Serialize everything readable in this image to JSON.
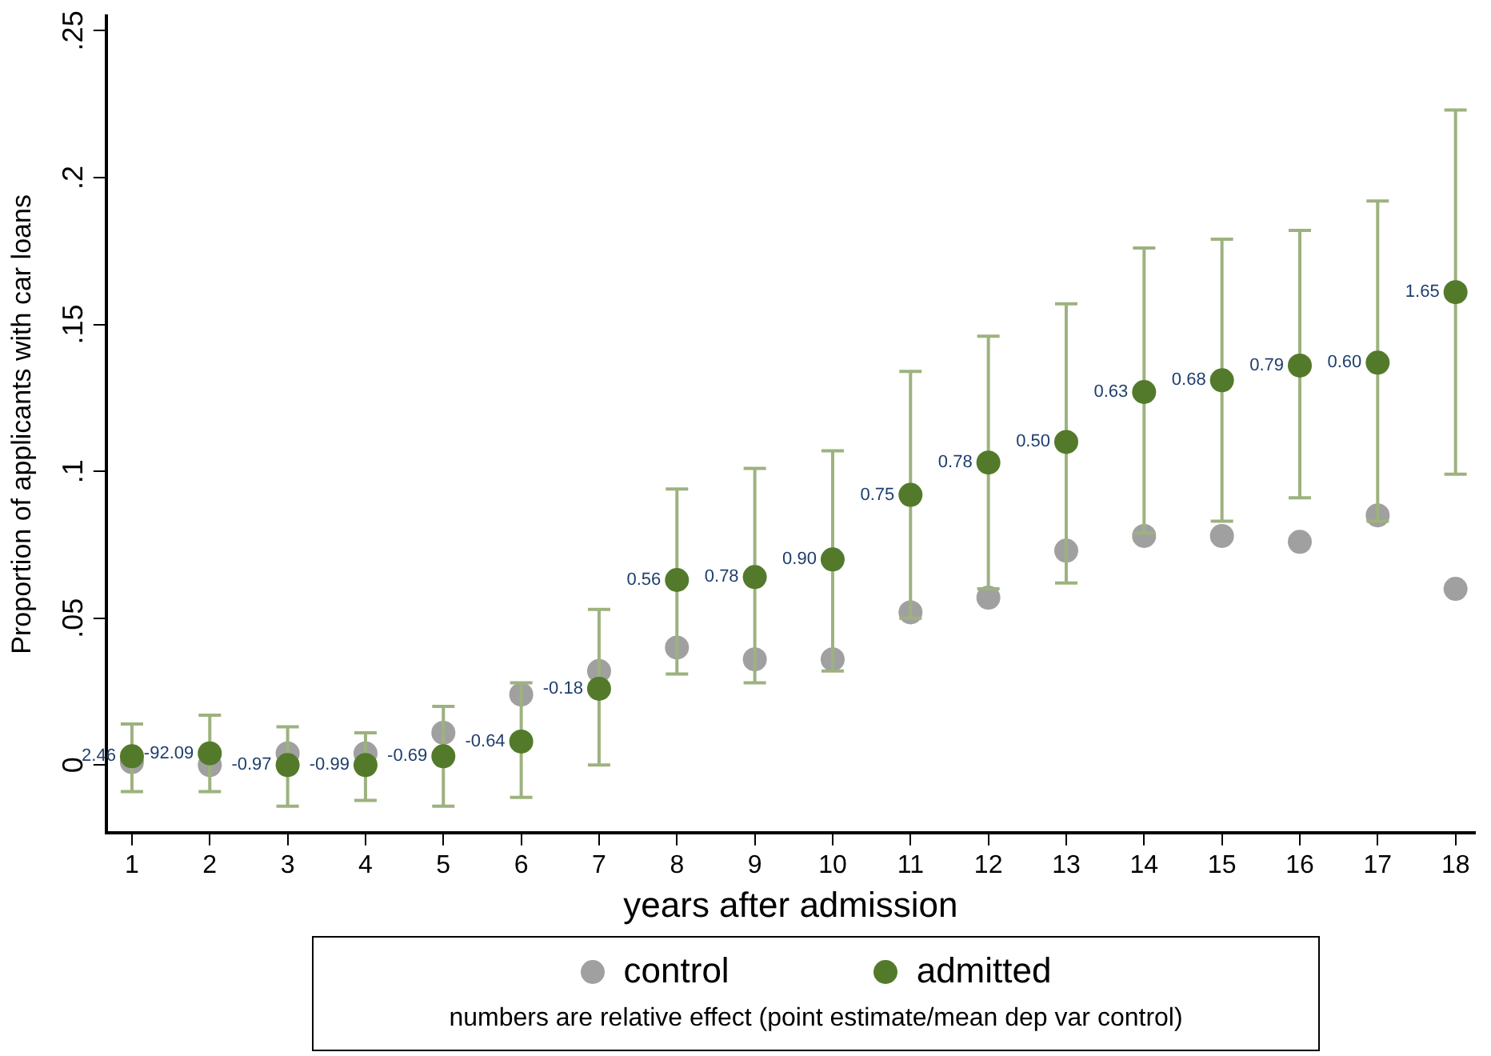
{
  "chart_data": {
    "type": "scatter",
    "xlabel": "years after admission",
    "ylabel": "Proportion of applicants with car loans",
    "x": [
      1,
      2,
      3,
      4,
      5,
      6,
      7,
      8,
      9,
      10,
      11,
      12,
      13,
      14,
      15,
      16,
      17,
      18
    ],
    "series": [
      {
        "name": "control",
        "color": "#a0a0a0",
        "values": [
          0.001,
          0.0,
          0.004,
          0.004,
          0.011,
          0.024,
          0.032,
          0.04,
          0.036,
          0.036,
          0.052,
          0.057,
          0.073,
          0.078,
          0.078,
          0.076,
          0.085,
          0.06
        ]
      },
      {
        "name": "admitted",
        "color": "#537a2a",
        "values": [
          0.003,
          0.004,
          0.0,
          0.0,
          0.003,
          0.008,
          0.026,
          0.063,
          0.064,
          0.07,
          0.092,
          0.103,
          0.11,
          0.127,
          0.131,
          0.136,
          0.137,
          0.161
        ],
        "errors": [
          [
            -0.009,
            0.014
          ],
          [
            -0.009,
            0.017
          ],
          [
            -0.014,
            0.013
          ],
          [
            -0.012,
            0.011
          ],
          [
            -0.014,
            0.02
          ],
          [
            -0.011,
            0.028
          ],
          [
            0.0,
            0.053
          ],
          [
            0.031,
            0.094
          ],
          [
            0.028,
            0.101
          ],
          [
            0.032,
            0.107
          ],
          [
            0.05,
            0.134
          ],
          [
            0.06,
            0.146
          ],
          [
            0.062,
            0.157
          ],
          [
            0.079,
            0.176
          ],
          [
            0.083,
            0.179
          ],
          [
            0.091,
            0.182
          ],
          [
            0.083,
            0.192
          ],
          [
            0.099,
            0.223
          ]
        ]
      }
    ],
    "xlim": [
      0.67,
      18.25
    ],
    "xticks": [
      1,
      2,
      3,
      4,
      5,
      6,
      7,
      8,
      9,
      10,
      11,
      12,
      13,
      14,
      15,
      16,
      17,
      18
    ],
    "ylim": [
      -0.023,
      0.255
    ],
    "yticks": [
      0,
      {
        "value": 0.05,
        "label": ".05"
      },
      {
        "value": 0.1,
        "label": ".1"
      },
      {
        "value": 0.15,
        "label": ".15"
      },
      {
        "value": 0.2,
        "label": ".2"
      },
      {
        "value": 0.25,
        "label": ".25"
      }
    ],
    "grid": false,
    "marker": "circle",
    "legend": "bottom",
    "annotations": [
      {
        "text": "2.46",
        "x": 1,
        "y": 0.003
      },
      {
        "text": "-92.09",
        "x": 2,
        "y": 0.004
      },
      {
        "text": "-0.97",
        "x": 3,
        "y": 0.0
      },
      {
        "text": "-0.99",
        "x": 4,
        "y": 0.0
      },
      {
        "text": "-0.69",
        "x": 5,
        "y": 0.003
      },
      {
        "text": "-0.64",
        "x": 6,
        "y": 0.008
      },
      {
        "text": "-0.18",
        "x": 7,
        "y": 0.026
      },
      {
        "text": "0.56",
        "x": 8,
        "y": 0.063
      },
      {
        "text": "0.78",
        "x": 9,
        "y": 0.064
      },
      {
        "text": "0.90",
        "x": 10,
        "y": 0.07
      },
      {
        "text": "0.75",
        "x": 11,
        "y": 0.092
      },
      {
        "text": "0.78",
        "x": 12,
        "y": 0.103
      },
      {
        "text": "0.50",
        "x": 13,
        "y": 0.11
      },
      {
        "text": "0.63",
        "x": 14,
        "y": 0.127
      },
      {
        "text": "0.68",
        "x": 15,
        "y": 0.131
      },
      {
        "text": "0.79",
        "x": 16,
        "y": 0.136
      },
      {
        "text": "0.60",
        "x": 17,
        "y": 0.137
      },
      {
        "text": "1.65",
        "x": 18,
        "y": 0.161
      },
      "numbers are relative effect (point estimate/mean dep var control)"
    ]
  }
}
